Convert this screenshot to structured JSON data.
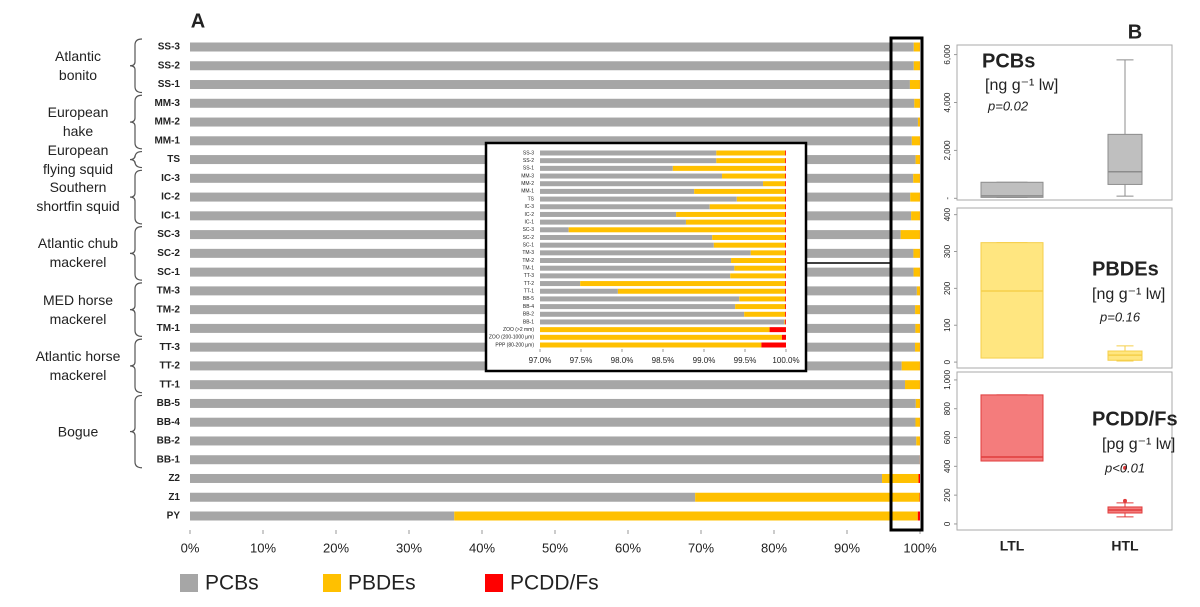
{
  "chart_data": [
    {
      "type": "hbar_stacked",
      "panel_label": "A",
      "categories": [
        "SS-3",
        "SS-2",
        "SS-1",
        "MM-3",
        "MM-2",
        "MM-1",
        "TS",
        "IC-3",
        "IC-2",
        "IC-1",
        "SC-3",
        "SC-2",
        "SC-1",
        "TM-3",
        "TM-2",
        "TM-1",
        "TT-3",
        "TT-2",
        "TT-1",
        "BB-5",
        "BB-4",
        "BB-2",
        "BB-1",
        "Z2",
        "Z1",
        "PY"
      ],
      "groups": [
        {
          "label": "Atlantic bonito",
          "members": [
            "SS-3",
            "SS-2",
            "SS-1"
          ]
        },
        {
          "label": "European hake",
          "members": [
            "MM-3",
            "MM-2",
            "MM-1"
          ]
        },
        {
          "label": "European flying squid",
          "members": [
            "TS"
          ]
        },
        {
          "label": "Southern shortfin squid",
          "members": [
            "IC-3",
            "IC-2",
            "IC-1"
          ]
        },
        {
          "label": "Atlantic chub mackerel",
          "members": [
            "SC-3",
            "SC-2",
            "SC-1"
          ]
        },
        {
          "label": "MED horse mackerel",
          "members": [
            "TM-3",
            "TM-2",
            "TM-1"
          ]
        },
        {
          "label": "Atlantic horse mackerel",
          "members": [
            "TT-3",
            "TT-2",
            "TT-1"
          ]
        },
        {
          "label": "Bogue",
          "members": [
            "BB-5",
            "BB-4",
            "BB-2",
            "BB-1"
          ]
        }
      ],
      "series": [
        {
          "name": "PCBs",
          "color": "#a6a6a6",
          "values": [
            99.15,
            99.15,
            98.62,
            99.22,
            99.72,
            98.88,
            99.4,
            99.07,
            98.66,
            98.78,
            97.35,
            99.1,
            99.12,
            99.57,
            99.33,
            99.37,
            99.32,
            97.49,
            97.95,
            99.43,
            99.38,
            99.49,
            99.98,
            94.8,
            69.2,
            36.2
          ]
        },
        {
          "name": "PBDEs",
          "color": "#ffc000",
          "values": [
            0.84,
            0.84,
            1.37,
            0.77,
            0.27,
            1.11,
            0.59,
            0.92,
            1.33,
            1.21,
            2.64,
            0.89,
            0.87,
            0.42,
            0.66,
            0.62,
            0.67,
            2.5,
            2.04,
            0.56,
            0.61,
            0.5,
            0.01,
            5.0,
            30.75,
            63.5
          ]
        },
        {
          "name": "PCDD/Fs",
          "color": "#ff0000",
          "values": [
            0.01,
            0.01,
            0.01,
            0.01,
            0.01,
            0.01,
            0.01,
            0.01,
            0.01,
            0.01,
            0.01,
            0.01,
            0.01,
            0.01,
            0.01,
            0.01,
            0.01,
            0.01,
            0.01,
            0.01,
            0.01,
            0.01,
            0.01,
            0.2,
            0.05,
            0.3
          ]
        }
      ],
      "xlim": [
        0,
        100
      ],
      "xticks": [
        {
          "value": 0,
          "label": "0%"
        },
        {
          "value": 10,
          "label": "10%"
        },
        {
          "value": 20,
          "label": "20%"
        },
        {
          "value": 30,
          "label": "30%"
        },
        {
          "value": 40,
          "label": "40%"
        },
        {
          "value": 50,
          "label": "50%"
        },
        {
          "value": 60,
          "label": "60%"
        },
        {
          "value": 70,
          "label": "70%"
        },
        {
          "value": 80,
          "label": "80%"
        },
        {
          "value": 90,
          "label": "90%"
        },
        {
          "value": 100,
          "label": "100%"
        }
      ],
      "legend": "bottom-left"
    },
    {
      "type": "inset_zoom",
      "categories": [
        "SS-3",
        "SS-2",
        "SS-1",
        "MM-3",
        "MM-2",
        "MM-1",
        "TS",
        "IC-3",
        "IC-2",
        "IC-1",
        "SC-3",
        "SC-2",
        "SC-1",
        "TM-3",
        "TM-2",
        "TM-1",
        "TT-3",
        "TT-2",
        "TT-1",
        "BB-5",
        "BB-4",
        "BB-2",
        "BB-1",
        "ZOO (>2 mm)",
        "ZOO (200-1000 µm)",
        "PPP (80-200 µm)"
      ],
      "xlim": [
        97,
        100
      ],
      "xticks": [
        {
          "value": 97,
          "label": "97.0%"
        },
        {
          "value": 97.5,
          "label": "97.5%"
        },
        {
          "value": 98,
          "label": "98.0%"
        },
        {
          "value": 98.5,
          "label": "98.5%"
        },
        {
          "value": 99,
          "label": "99.0%"
        },
        {
          "value": 99.5,
          "label": "99.5%"
        },
        {
          "value": 100,
          "label": "100.0%"
        }
      ]
    },
    {
      "type": "box",
      "panel_label": "B",
      "title": "PCBs",
      "unit": "[ng g⁻¹ lw]",
      "annotation": "p=0.02",
      "color": "#bfbfbf",
      "edge_color": "#8c8c8c",
      "boxes": [
        {
          "min": 40,
          "q1": 40,
          "median": 100,
          "q3": 670,
          "max": 670,
          "outliers": []
        },
        {
          "min": 90,
          "q1": 580,
          "median": 1110,
          "q3": 2670,
          "max": 5780,
          "outliers": []
        }
      ],
      "ylim": [
        -70,
        6400
      ],
      "yticks": [
        {
          "value": 0,
          "label": "-"
        },
        {
          "value": 2000,
          "label": "2,000"
        },
        {
          "value": 4000,
          "label": "4,000"
        },
        {
          "value": 6000,
          "label": "6,000"
        }
      ]
    },
    {
      "type": "box",
      "title": "PBDEs",
      "unit": "[ng g⁻¹ lw]",
      "annotation": "p=0.16",
      "color": "#ffe680",
      "edge_color": "#f5cf4a",
      "boxes": [
        {
          "min": 11,
          "q1": 11,
          "median": 193,
          "q3": 324,
          "max": 324,
          "outliers": []
        },
        {
          "min": 3,
          "q1": 5,
          "median": 19,
          "q3": 30,
          "max": 44,
          "outliers": []
        }
      ],
      "ylim": [
        -16,
        418
      ],
      "yticks": [
        0,
        100,
        200,
        300,
        400
      ]
    },
    {
      "type": "box",
      "title": "PCDD/Fs",
      "unit": "[pg g⁻¹ lw]",
      "annotation": "p<0.01",
      "color": "#f47c7c",
      "edge_color": "#e03c3c",
      "categories": [
        "LTL",
        "HTL"
      ],
      "boxes": [
        {
          "min": 437,
          "q1": 437,
          "median": 465,
          "q3": 896,
          "max": 896,
          "outliers": []
        },
        {
          "min": 49,
          "q1": 76,
          "median": 97,
          "q3": 118,
          "max": 146,
          "outliers": [
            160,
            389
          ]
        }
      ],
      "ylim": [
        -42,
        1055
      ],
      "yticks": [
        0,
        200,
        400,
        600,
        800,
        {
          "value": 1000,
          "label": "1,000"
        }
      ]
    }
  ]
}
